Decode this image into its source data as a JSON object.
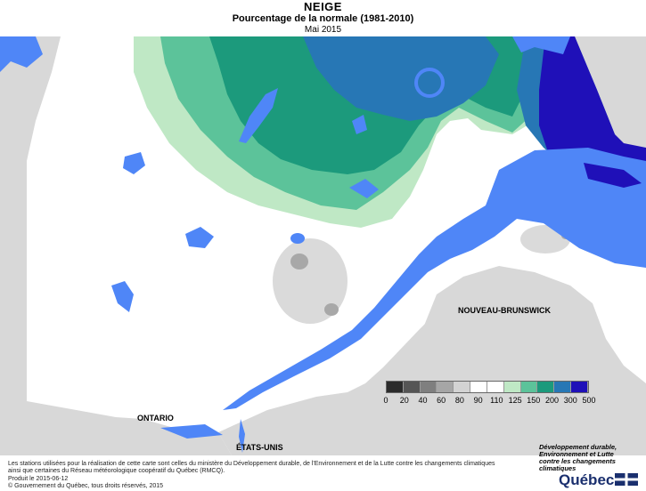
{
  "header": {
    "title": "NEIGE",
    "subtitle": "Pourcentage de la normale (1981-2010)",
    "period": "Mai 2015"
  },
  "map_labels": {
    "ontario": "ONTARIO",
    "nouveau_brunswick": "NOUVEAU-BRUNSWICK",
    "etats_unis": "ÉTATS-UNIS"
  },
  "legend": {
    "ticks": [
      "0",
      "20",
      "40",
      "60",
      "80",
      "90",
      "110",
      "125",
      "150",
      "200",
      "300",
      "500"
    ],
    "colors": [
      "#2b2b2b",
      "#555555",
      "#7f7f7f",
      "#a6a6a6",
      "#d3d3d3",
      "#ffffff",
      "#ffffff",
      "#bfe8c5",
      "#5cc39a",
      "#1c9a7c",
      "#2777b5",
      "#1f10b8"
    ]
  },
  "colors": {
    "water": "#4f86f7",
    "neighbor": "#d8d8d8",
    "grey_zone": "#dadada",
    "grey_dark": "#a8a8a8",
    "green_light": "#bfe8c5",
    "green_mid": "#5cc39a",
    "teal": "#1c9a7c",
    "blue_mid": "#2777b5",
    "violet": "#1f10b8"
  },
  "footer": {
    "source_line1": "Les stations utilisées pour la réalisation de cette carte sont celles du ministère du Développement durable, de l'Environnement et de la Lutte contre les changements climatiques",
    "source_line2": "ainsi que certaines du Réseau météorologique coopératif du Québec (RMCQ).",
    "produced": "Produit le 2015-06-12",
    "copyright": "© Gouvernement du Québec, tous droits réservés, 2015",
    "ministry_line1": "Développement durable,",
    "ministry_line2": "Environnement et Lutte",
    "ministry_line3": "contre les changements",
    "ministry_line4": "climatiques",
    "quebec_logo": "Québec"
  }
}
